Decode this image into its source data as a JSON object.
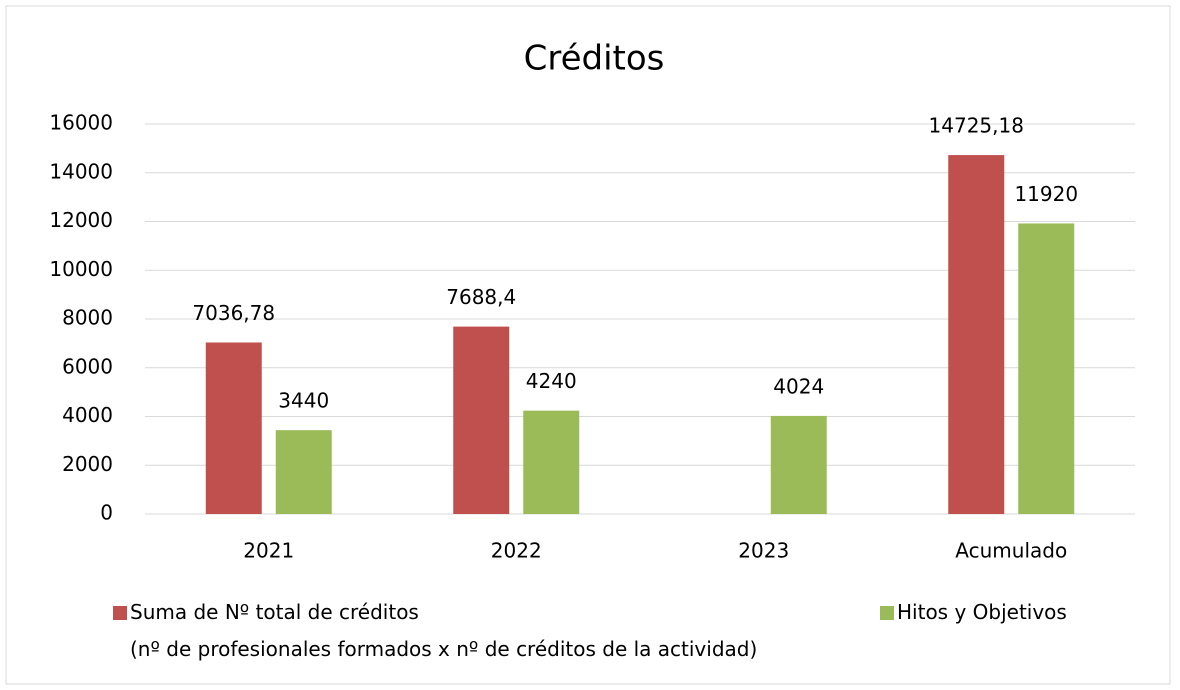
{
  "chart_data": {
    "type": "bar",
    "title": "Créditos",
    "categories": [
      "2021",
      "2022",
      "2023",
      "Acumulado"
    ],
    "series": [
      {
        "name": "Suma de Nº total de créditos\n(nº de profesionales formados x nº de créditos de la actividad)",
        "color": "#c0504d",
        "values": [
          7036.78,
          7688.4,
          null,
          14725.18
        ],
        "value_labels": [
          "7036,78",
          "7688,4",
          null,
          "14725,18"
        ]
      },
      {
        "name": "Hitos y Objetivos",
        "color": "#9bbb59",
        "values": [
          3440,
          4240,
          4024,
          11920
        ]
      }
    ],
    "ylim": [
      0,
      16000
    ],
    "yticks": [
      0,
      2000,
      4000,
      6000,
      8000,
      10000,
      12000,
      14000,
      16000
    ],
    "grid": true,
    "legend": "bottom"
  }
}
